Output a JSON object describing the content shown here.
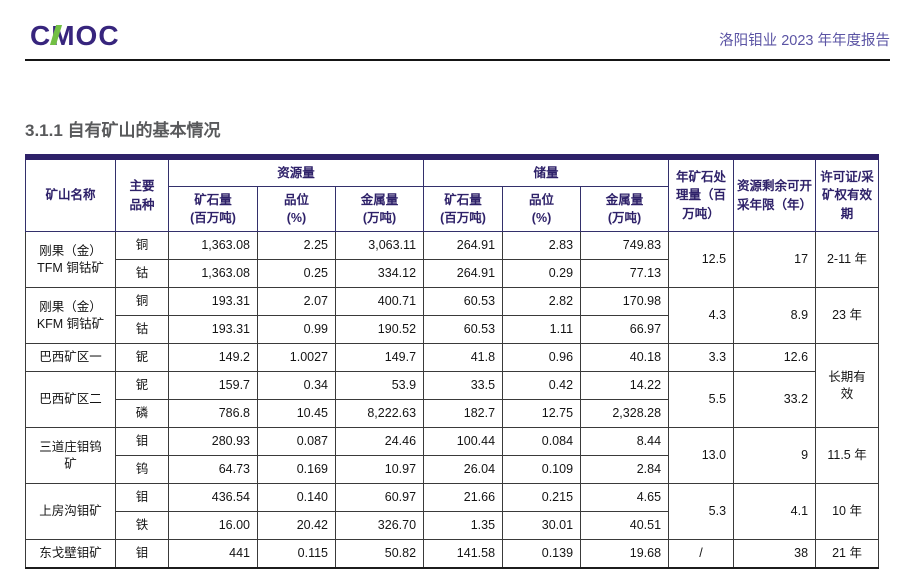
{
  "header": {
    "logo_text": "CMOC",
    "report_title": "洛阳钼业 2023 年年度报告"
  },
  "section_title": "3.1.1 自有矿山的基本情况",
  "colors": {
    "accent_indigo": "#2E2169",
    "logo_indigo": "#37257D",
    "logo_green": "#72BF44",
    "report_title_purple": "#5B54A4",
    "section_title_gray": "#58595B"
  },
  "table": {
    "columns": {
      "mine_name": "矿山名称",
      "main_variety": "主要\n品种",
      "resources_group": "资源量",
      "reserves_group": "储量",
      "ore": "矿石量\n(百万吨)",
      "grade": "品位\n(%)",
      "metal": "金属量\n(万吨)",
      "annual_processing": "年矿石处理量（百万吨）",
      "remaining_years": "资源剩余可开采年限（年）",
      "license": "许可证/采矿权有效期"
    },
    "groups": [
      {
        "mine": "刚果（金）\nTFM 铜钴矿",
        "rows": [
          {
            "variety": "铜",
            "res_ore": "1,363.08",
            "res_grade": "2.25",
            "res_metal": "3,063.11",
            "rsv_ore": "264.91",
            "rsv_grade": "2.83",
            "rsv_metal": "749.83"
          },
          {
            "variety": "钴",
            "res_ore": "1,363.08",
            "res_grade": "0.25",
            "res_metal": "334.12",
            "rsv_ore": "264.91",
            "rsv_grade": "0.29",
            "rsv_metal": "77.13"
          }
        ],
        "annual_processing": "12.5",
        "remaining_years": "17",
        "license": "2-11 年"
      },
      {
        "mine": "刚果（金）\nKFM 铜钴矿",
        "rows": [
          {
            "variety": "铜",
            "res_ore": "193.31",
            "res_grade": "2.07",
            "res_metal": "400.71",
            "rsv_ore": "60.53",
            "rsv_grade": "2.82",
            "rsv_metal": "170.98"
          },
          {
            "variety": "钴",
            "res_ore": "193.31",
            "res_grade": "0.99",
            "res_metal": "190.52",
            "rsv_ore": "60.53",
            "rsv_grade": "1.11",
            "rsv_metal": "66.97"
          }
        ],
        "annual_processing": "4.3",
        "remaining_years": "8.9",
        "license": "23 年"
      },
      {
        "mine": "巴西矿区一",
        "rows": [
          {
            "variety": "铌",
            "res_ore": "149.2",
            "res_grade": "1.0027",
            "res_metal": "149.7",
            "rsv_ore": "41.8",
            "rsv_grade": "0.96",
            "rsv_metal": "40.18"
          }
        ],
        "annual_processing": "3.3",
        "remaining_years": "12.6",
        "license": "长期有效",
        "license_rowspan": 3
      },
      {
        "mine": "巴西矿区二",
        "rows": [
          {
            "variety": "铌",
            "res_ore": "159.7",
            "res_grade": "0.34",
            "res_metal": "53.9",
            "rsv_ore": "33.5",
            "rsv_grade": "0.42",
            "rsv_metal": "14.22"
          },
          {
            "variety": "磷",
            "res_ore": "786.8",
            "res_grade": "10.45",
            "res_metal": "8,222.63",
            "rsv_ore": "182.7",
            "rsv_grade": "12.75",
            "rsv_metal": "2,328.28"
          }
        ],
        "annual_processing": "5.5",
        "remaining_years": "33.2",
        "license": null
      },
      {
        "mine": "三道庄钼钨\n矿",
        "rows": [
          {
            "variety": "钼",
            "res_ore": "280.93",
            "res_grade": "0.087",
            "res_metal": "24.46",
            "rsv_ore": "100.44",
            "rsv_grade": "0.084",
            "rsv_metal": "8.44"
          },
          {
            "variety": "钨",
            "res_ore": "64.73",
            "res_grade": "0.169",
            "res_metal": "10.97",
            "rsv_ore": "26.04",
            "rsv_grade": "0.109",
            "rsv_metal": "2.84"
          }
        ],
        "annual_processing": "13.0",
        "remaining_years": "9",
        "license": "11.5 年"
      },
      {
        "mine": "上房沟钼矿",
        "rows": [
          {
            "variety": "钼",
            "res_ore": "436.54",
            "res_grade": "0.140",
            "res_metal": "60.97",
            "rsv_ore": "21.66",
            "rsv_grade": "0.215",
            "rsv_metal": "4.65"
          },
          {
            "variety": "铁",
            "res_ore": "16.00",
            "res_grade": "20.42",
            "res_metal": "326.70",
            "rsv_ore": "1.35",
            "rsv_grade": "30.01",
            "rsv_metal": "40.51"
          }
        ],
        "annual_processing": "5.3",
        "remaining_years": "4.1",
        "license": "10 年"
      },
      {
        "mine": "东戈壁钼矿",
        "rows": [
          {
            "variety": "钼",
            "res_ore": "441",
            "res_grade": "0.115",
            "res_metal": "50.82",
            "rsv_ore": "141.58",
            "rsv_grade": "0.139",
            "rsv_metal": "19.68"
          }
        ],
        "annual_processing": "/",
        "remaining_years": "38",
        "license": "21 年"
      }
    ]
  }
}
